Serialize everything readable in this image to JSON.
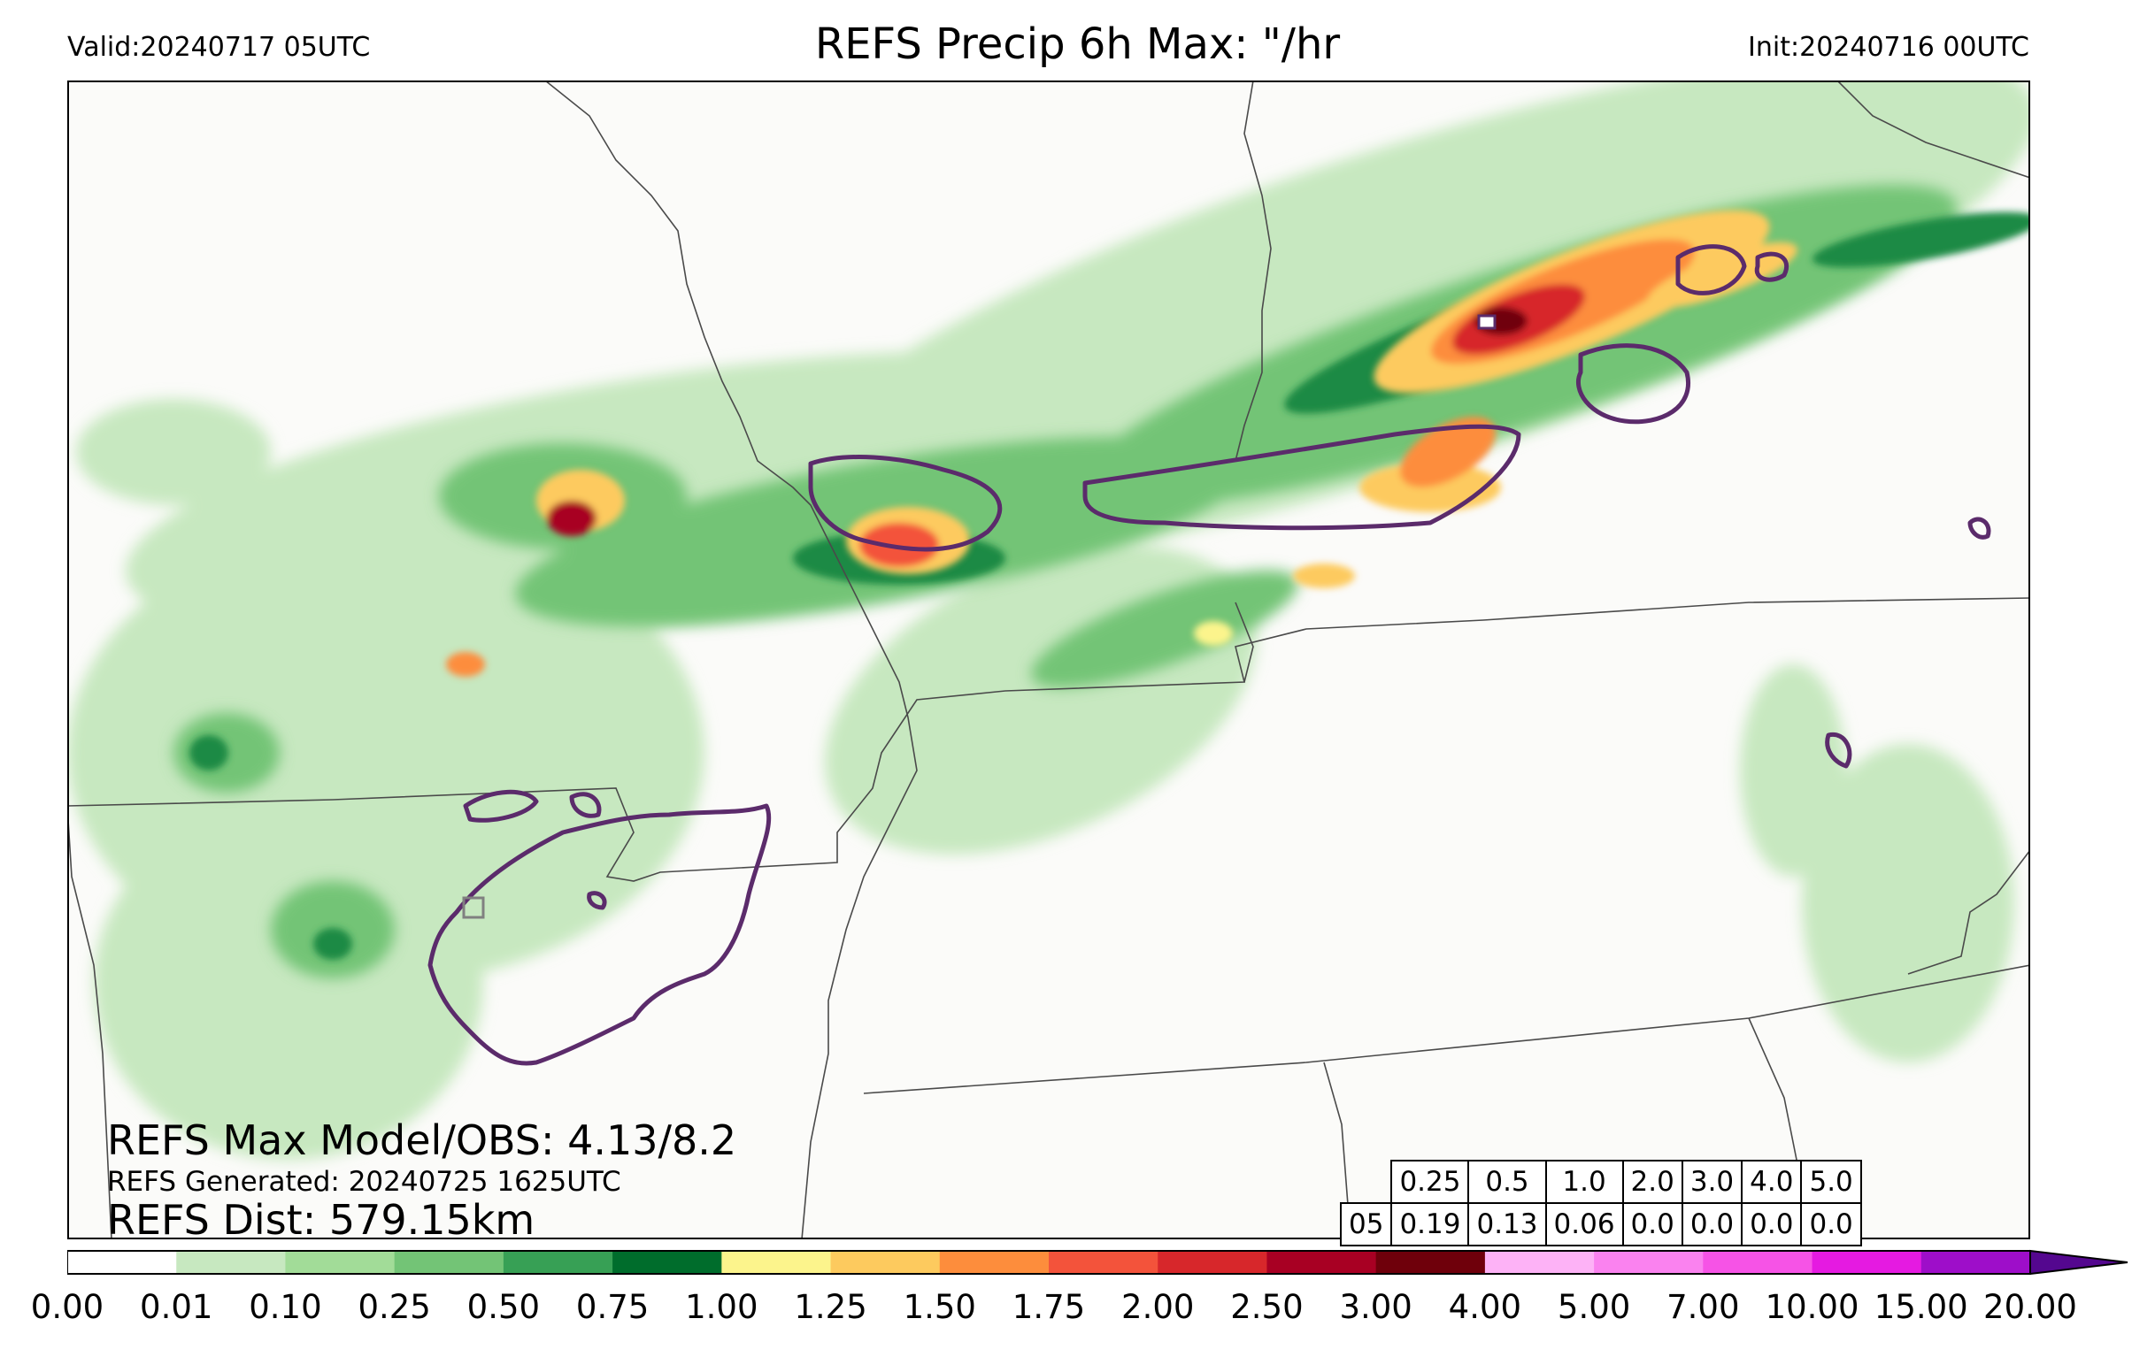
{
  "header": {
    "valid": "Valid:20240717 05UTC",
    "title": "REFS Precip 6h Max: \"/hr",
    "init": "Init:20240716 00UTC"
  },
  "map": {
    "type": "precipitation field map",
    "boundary_color": "#4a4a4a",
    "obs_contour_color": "#5b2b6b"
  },
  "annotations": {
    "max_model_obs": "REFS Max Model/OBS: 4.13/8.2",
    "generated": "REFS Generated: 20240725 1625UTC",
    "distance": "REFS Dist: 579.15km"
  },
  "stats_table": {
    "thresholds": [
      "0.25",
      "0.5",
      "1.0",
      "2.0",
      "3.0",
      "4.0",
      "5.0"
    ],
    "row_label": "05",
    "values": [
      "0.19",
      "0.13",
      "0.06",
      "0.0",
      "0.0",
      "0.0",
      "0.0"
    ]
  },
  "colorbar": {
    "ticks": [
      "0.00",
      "0.01",
      "0.10",
      "0.25",
      "0.50",
      "0.75",
      "1.00",
      "1.25",
      "1.50",
      "1.75",
      "2.00",
      "2.50",
      "3.00",
      "4.00",
      "5.00",
      "7.00",
      "10.00",
      "15.00",
      "20.00"
    ],
    "colors": [
      "#ffffff",
      "#c7e8c0",
      "#a2dc98",
      "#73c476",
      "#37a055",
      "#006d2c",
      "#fcf48c",
      "#fdca5e",
      "#fd8d3c",
      "#f3533b",
      "#d7272b",
      "#a80023",
      "#6f000b",
      "#fdb2f6",
      "#fa82ef",
      "#f653e6",
      "#e51ae1",
      "#9e0ec9"
    ],
    "extend_color": "#54078f"
  }
}
